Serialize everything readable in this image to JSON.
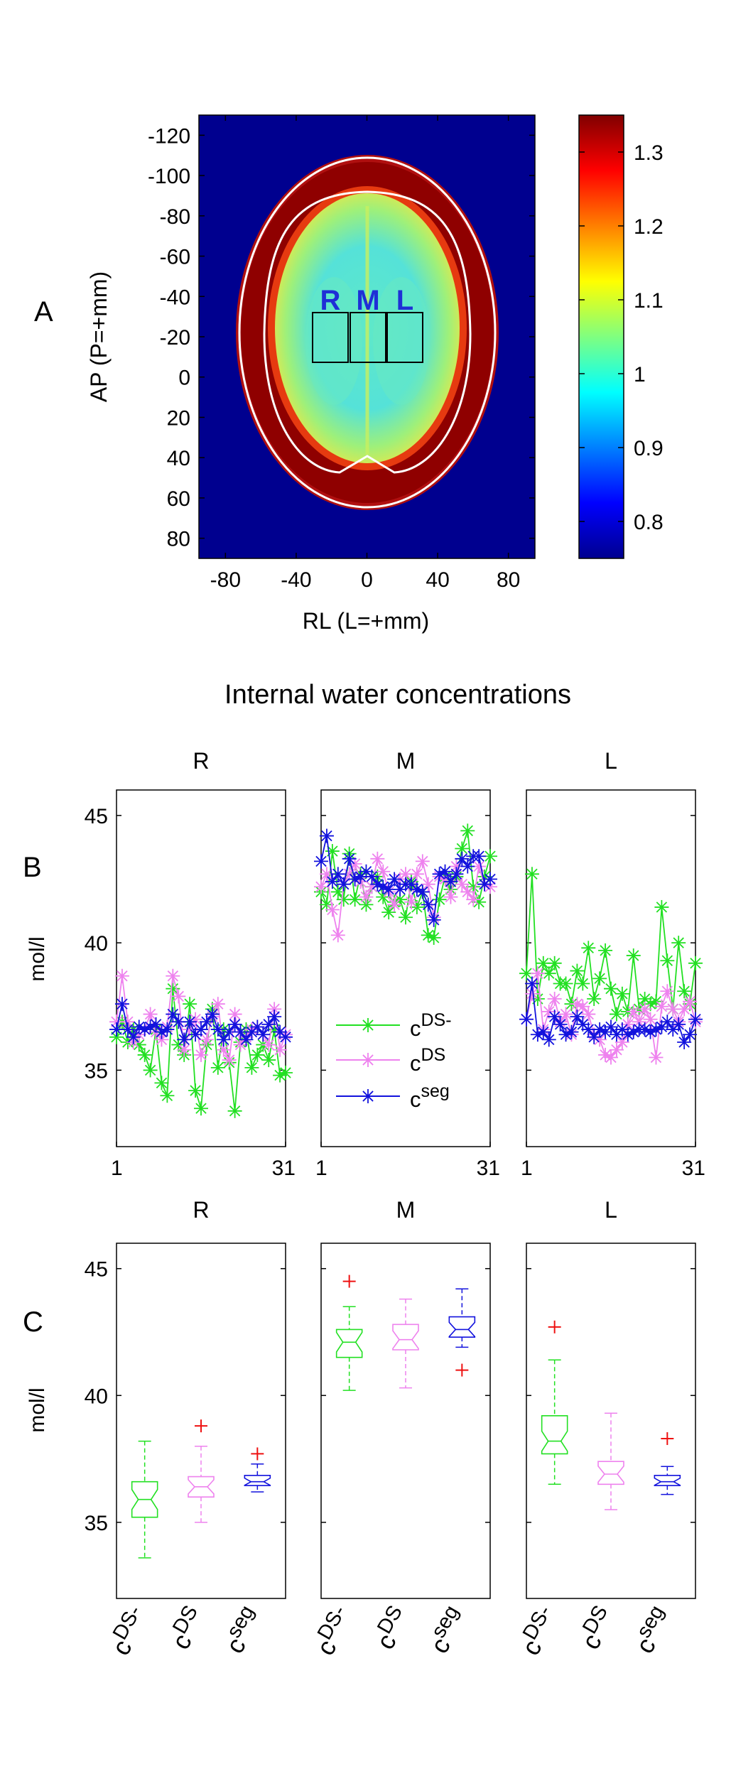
{
  "panel_a": {
    "letter": "A",
    "xlabel": "RL (L=+mm)",
    "ylabel": "AP (P=+mm)",
    "x_ticks": [
      "-80",
      "-40",
      "0",
      "40",
      "80"
    ],
    "y_ticks": [
      "-120",
      "-100",
      "-80",
      "-60",
      "-40",
      "-20",
      "0",
      "20",
      "40",
      "60",
      "80"
    ],
    "roi_labels": [
      "R",
      "M",
      "L"
    ],
    "roi_label_color": "#1f2fd6",
    "colorbar_ticks": [
      "1.3",
      "1.2",
      "1.1",
      "1",
      "0.9",
      "0.8"
    ]
  },
  "section_title": "Internal water concentrations",
  "panel_b": {
    "letter": "B",
    "ylabel": "mol/l",
    "y_ticks": [
      "45",
      "40",
      "35"
    ],
    "x_ticks": [
      "1",
      "31"
    ],
    "subplot_titles": [
      "R",
      "M",
      "L"
    ],
    "legend": [
      {
        "base": "c",
        "sup": "DS-",
        "color": "#22e022"
      },
      {
        "base": "c",
        "sup": "DS",
        "color": "#ee82ee"
      },
      {
        "base": "c",
        "sup": "seg",
        "color": "#1212dd"
      }
    ]
  },
  "panel_c": {
    "letter": "C",
    "ylabel": "mol/l",
    "y_ticks": [
      "45",
      "40",
      "35"
    ],
    "subplot_titles": [
      "R",
      "M",
      "L"
    ],
    "category_labels": [
      {
        "base": "c",
        "sup": "DS-"
      },
      {
        "base": "c",
        "sup": "DS"
      },
      {
        "base": "c",
        "sup": "seg"
      }
    ]
  },
  "chart_data": [
    {
      "type": "heatmap",
      "panel": "A",
      "xlabel": "RL (L=+mm)",
      "ylabel": "AP (P=+mm)",
      "xlim": [
        -95,
        95
      ],
      "ylim": [
        90,
        -130
      ],
      "colorbar_range": [
        0.75,
        1.35
      ],
      "colormap": "jet"
    },
    {
      "type": "line",
      "panel": "B",
      "ylabel": "mol/l",
      "ylim": [
        32,
        46
      ],
      "xlim": [
        1,
        31
      ],
      "subplots": [
        {
          "title": "R",
          "series": [
            {
              "name": "cDS-",
              "color": "#22e022",
              "values": [
                36.3,
                36.9,
                36.1,
                36.6,
                36.0,
                35.6,
                35.0,
                36.6,
                34.5,
                34.0,
                38.2,
                36.0,
                35.6,
                37.6,
                34.2,
                33.5,
                36.0,
                37.4,
                35.1,
                36.6,
                35.3,
                33.4,
                36.1,
                36.6,
                35.1,
                35.6,
                36.0,
                35.4,
                36.6,
                34.8,
                34.9
              ]
            },
            {
              "name": "cDS",
              "color": "#ee82ee",
              "values": [
                36.9,
                38.7,
                36.9,
                36.1,
                36.4,
                36.6,
                37.2,
                36.5,
                36.2,
                36.7,
                38.7,
                37.9,
                35.8,
                36.6,
                37.0,
                35.6,
                36.2,
                37.1,
                37.6,
                35.8,
                35.4,
                37.2,
                36.0,
                36.3,
                36.6,
                36.7,
                36.4,
                36.0,
                37.4,
                35.8,
                36.4
              ]
            },
            {
              "name": "cseg",
              "color": "#1212dd",
              "values": [
                36.6,
                37.6,
                36.6,
                36.3,
                36.7,
                36.6,
                36.7,
                36.8,
                36.5,
                36.6,
                37.2,
                36.9,
                36.2,
                36.9,
                36.4,
                36.6,
                36.9,
                37.2,
                36.6,
                36.2,
                36.5,
                36.8,
                36.5,
                36.2,
                36.5,
                36.7,
                36.4,
                36.8,
                37.1,
                36.5,
                36.3
              ]
            }
          ]
        },
        {
          "title": "M",
          "series": [
            {
              "name": "cDS-",
              "color": "#22e022",
              "values": [
                42.0,
                41.5,
                43.6,
                42.0,
                41.7,
                43.5,
                41.7,
                42.7,
                41.5,
                42.2,
                42.6,
                41.8,
                41.2,
                41.6,
                41.7,
                41.0,
                42.4,
                41.4,
                42.0,
                40.3,
                40.2,
                41.7,
                42.6,
                42.1,
                42.6,
                43.7,
                44.4,
                42.2,
                41.6,
                42.6,
                43.4
              ]
            },
            {
              "name": "cDS",
              "color": "#ee82ee",
              "values": [
                42.2,
                42.7,
                41.3,
                40.3,
                42.3,
                42.7,
                43.1,
                42.4,
                41.8,
                42.2,
                43.3,
                42.8,
                42.0,
                41.5,
                42.5,
                42.7,
                41.6,
                42.7,
                43.2,
                42.3,
                41.0,
                42.6,
                42.5,
                41.8,
                43.0,
                42.3,
                42.0,
                41.7,
                43.0,
                42.3,
                42.2
              ]
            },
            {
              "name": "cseg",
              "color": "#1212dd",
              "values": [
                43.2,
                44.2,
                42.4,
                42.7,
                42.3,
                43.3,
                42.5,
                42.6,
                42.8,
                42.6,
                42.3,
                42.2,
                42.1,
                42.5,
                42.1,
                42.3,
                42.3,
                42.1,
                42.0,
                41.5,
                40.9,
                42.7,
                42.8,
                42.4,
                42.7,
                43.3,
                43.0,
                43.4,
                43.4,
                42.3,
                42.5
              ]
            }
          ]
        },
        {
          "title": "L",
          "series": [
            {
              "name": "cDS-",
              "color": "#22e022",
              "values": [
                38.8,
                42.7,
                37.8,
                39.2,
                38.8,
                39.2,
                38.4,
                38.4,
                37.6,
                38.9,
                38.4,
                39.8,
                37.8,
                38.6,
                39.7,
                38.2,
                37.2,
                38.0,
                37.3,
                39.5,
                37.4,
                37.8,
                37.6,
                37.7,
                41.4,
                39.3,
                37.4,
                40.0,
                38.1,
                37.6,
                39.2
              ]
            },
            {
              "name": "cDS",
              "color": "#ee82ee",
              "values": [
                37.0,
                38.0,
                38.8,
                36.6,
                37.3,
                37.8,
                36.9,
                37.2,
                36.4,
                37.6,
                37.5,
                37.2,
                36.4,
                36.2,
                35.6,
                35.5,
                35.8,
                36.1,
                36.8,
                37.3,
                36.9,
                37.4,
                37.0,
                35.5,
                37.5,
                38.1,
                37.4,
                36.9,
                37.4,
                37.7,
                36.9
              ]
            },
            {
              "name": "cseg",
              "color": "#1212dd",
              "values": [
                37.0,
                38.4,
                36.4,
                36.5,
                36.2,
                37.1,
                36.8,
                36.4,
                36.5,
                37.1,
                36.8,
                36.6,
                36.3,
                36.6,
                36.5,
                36.7,
                36.4,
                36.6,
                36.4,
                36.5,
                36.6,
                36.6,
                36.5,
                36.6,
                36.7,
                36.9,
                36.6,
                36.8,
                36.1,
                36.4,
                37.0
              ]
            }
          ]
        }
      ]
    },
    {
      "type": "box",
      "panel": "C",
      "ylabel": "mol/l",
      "ylim": [
        32,
        46
      ],
      "subplots": [
        {
          "title": "R",
          "boxes": [
            {
              "name": "cDS-",
              "color": "#22e022",
              "whisker_low": 33.6,
              "q1": 35.2,
              "median": 35.9,
              "q3": 36.6,
              "whisker_high": 38.2,
              "outliers": []
            },
            {
              "name": "cDS",
              "color": "#ee82ee",
              "whisker_low": 35.0,
              "q1": 36.0,
              "median": 36.4,
              "q3": 36.8,
              "whisker_high": 38.0,
              "outliers": [
                38.8
              ]
            },
            {
              "name": "cseg",
              "color": "#1212dd",
              "whisker_low": 36.2,
              "q1": 36.45,
              "median": 36.6,
              "q3": 36.85,
              "whisker_high": 37.3,
              "outliers": [
                37.7
              ]
            }
          ]
        },
        {
          "title": "M",
          "boxes": [
            {
              "name": "cDS-",
              "color": "#22e022",
              "whisker_low": 40.2,
              "q1": 41.5,
              "median": 42.1,
              "q3": 42.6,
              "whisker_high": 43.5,
              "outliers": [
                44.5
              ]
            },
            {
              "name": "cDS",
              "color": "#ee82ee",
              "whisker_low": 40.3,
              "q1": 41.8,
              "median": 42.2,
              "q3": 42.8,
              "whisker_high": 43.8,
              "outliers": []
            },
            {
              "name": "cseg",
              "color": "#1212dd",
              "whisker_low": 41.9,
              "q1": 42.3,
              "median": 42.6,
              "q3": 43.1,
              "whisker_high": 44.2,
              "outliers": [
                41.0
              ]
            }
          ]
        },
        {
          "title": "L",
          "boxes": [
            {
              "name": "cDS-",
              "color": "#22e022",
              "whisker_low": 36.5,
              "q1": 37.7,
              "median": 38.2,
              "q3": 39.2,
              "whisker_high": 41.4,
              "outliers": [
                42.7
              ]
            },
            {
              "name": "cDS",
              "color": "#ee82ee",
              "whisker_low": 35.5,
              "q1": 36.5,
              "median": 36.9,
              "q3": 37.4,
              "whisker_high": 39.3,
              "outliers": []
            },
            {
              "name": "cseg",
              "color": "#1212dd",
              "whisker_low": 36.1,
              "q1": 36.45,
              "median": 36.6,
              "q3": 36.85,
              "whisker_high": 37.2,
              "outliers": [
                38.3
              ]
            }
          ]
        }
      ]
    }
  ]
}
